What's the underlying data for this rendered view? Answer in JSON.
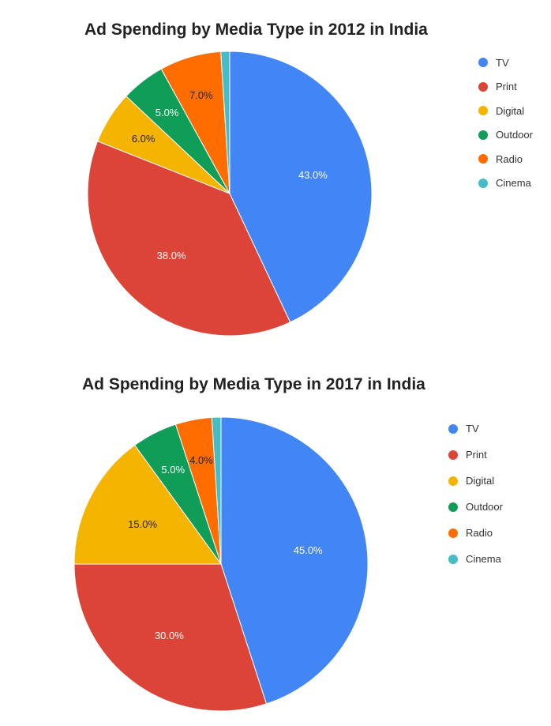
{
  "charts": [
    {
      "chart_data": {
        "type": "pie",
        "title": "Ad Spending by Media Type in 2012 in India",
        "categories": [
          "TV",
          "Print",
          "Digital",
          "Outdoor",
          "Radio",
          "Cinema"
        ],
        "values": [
          43.0,
          38.0,
          6.0,
          5.0,
          7.0,
          1.0
        ],
        "labels": [
          "43.0%",
          "38.0%",
          "6.0%",
          "5.0%",
          "7.0%",
          ""
        ],
        "colors": [
          "#4285f4",
          "#db4437",
          "#f4b400",
          "#0f9d58",
          "#ff6d01",
          "#46bdc6"
        ],
        "label_colors": [
          "#ffffff",
          "#ffffff",
          "#222222",
          "#ffffff",
          "#222222",
          "#222222"
        ],
        "legend": "right"
      }
    },
    {
      "chart_data": {
        "type": "pie",
        "title": "Ad Spending by Media Type in 2017 in India",
        "categories": [
          "TV",
          "Print",
          "Digital",
          "Outdoor",
          "Radio",
          "Cinema"
        ],
        "values": [
          45.0,
          30.0,
          15.0,
          5.0,
          4.0,
          1.0
        ],
        "labels": [
          "45.0%",
          "30.0%",
          "15.0%",
          "5.0%",
          "4.0%",
          ""
        ],
        "colors": [
          "#4285f4",
          "#db4437",
          "#f4b400",
          "#0f9d58",
          "#ff6d01",
          "#46bdc6"
        ],
        "label_colors": [
          "#ffffff",
          "#ffffff",
          "#222222",
          "#ffffff",
          "#222222",
          "#222222"
        ],
        "legend": "right"
      }
    }
  ]
}
